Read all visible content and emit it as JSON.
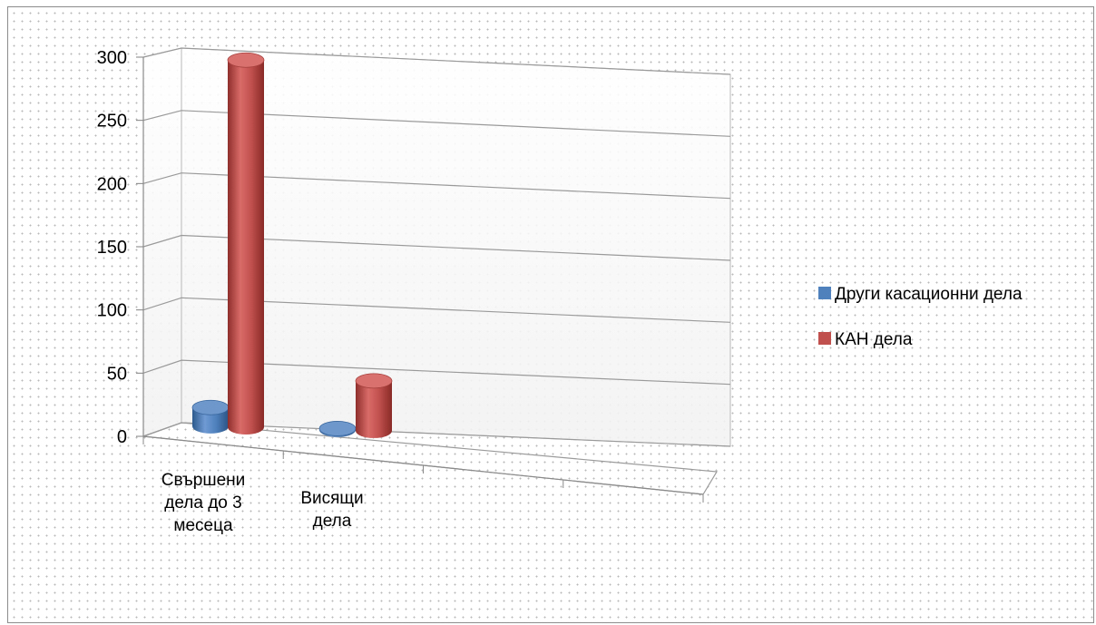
{
  "chart_data": {
    "type": "bar",
    "categories": [
      "Свършени дела до 3 месеца",
      "Висящи дела"
    ],
    "category_label_lines": [
      [
        "Свършени",
        "дела до 3",
        "месеца"
      ],
      [
        "Висящи",
        "дела"
      ]
    ],
    "series": [
      {
        "name": "Други касационни дела",
        "values": [
          15,
          1
        ],
        "color": "#4f81bd"
      },
      {
        "name": "КАН дела",
        "values": [
          294,
          40
        ],
        "color": "#c0504d"
      }
    ],
    "y_ticks": [
      "0",
      "50",
      "100",
      "150",
      "200",
      "250",
      "300"
    ],
    "ylim": [
      0,
      300
    ],
    "title": "",
    "xlabel": "",
    "ylabel": "",
    "grid": true,
    "legend_position": "right",
    "style": "3d-cylinder"
  }
}
